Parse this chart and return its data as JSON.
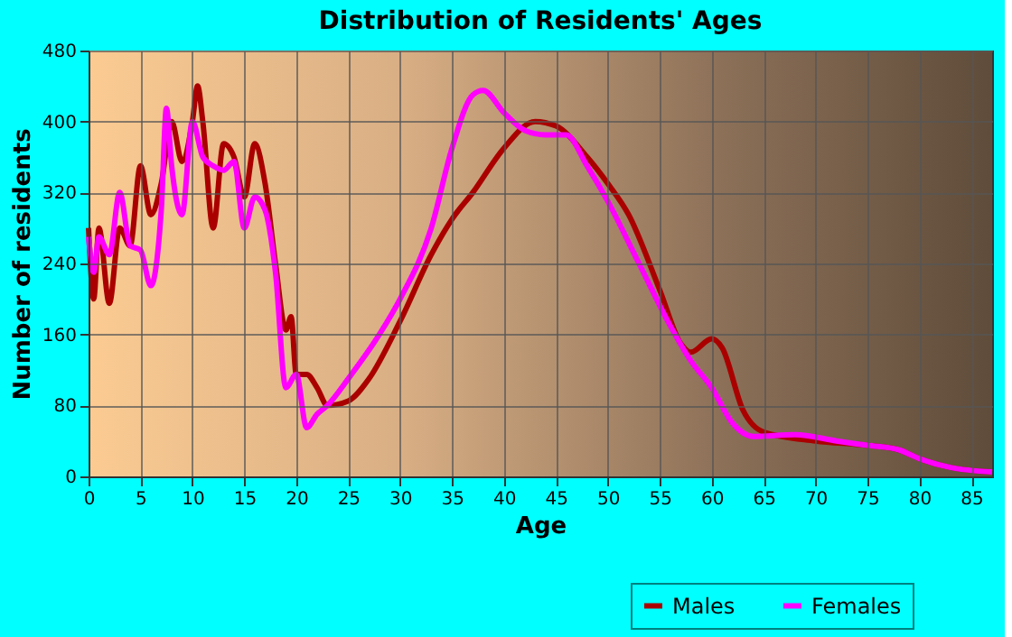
{
  "chart_data": {
    "type": "line",
    "title": "Distribution of Residents' Ages",
    "xlabel": "Age",
    "ylabel": "Number of residents",
    "xlim": [
      0,
      87
    ],
    "xticks": [
      0,
      5,
      10,
      15,
      20,
      25,
      30,
      35,
      40,
      45,
      50,
      55,
      60,
      65,
      70,
      75,
      80,
      85
    ],
    "ylim": [
      0,
      480
    ],
    "yticks": [
      0,
      80,
      160,
      240,
      320,
      400,
      480
    ],
    "grid": true,
    "legend": "bottom right",
    "series": [
      {
        "name": "Males",
        "color": "#aa0000",
        "x": [
          0,
          0.5,
          1,
          2,
          3,
          4,
          5,
          6,
          7,
          8,
          9,
          10,
          10.5,
          11,
          12,
          13,
          14,
          15,
          16,
          17,
          18,
          19,
          19.5,
          20,
          21,
          22,
          23,
          25,
          27,
          30,
          33,
          35,
          37,
          40,
          43,
          45,
          48,
          50,
          52,
          55,
          57,
          58,
          60,
          61,
          63,
          65,
          70,
          75,
          78,
          80,
          83,
          87
        ],
        "values": [
          280,
          200,
          280,
          195,
          280,
          260,
          350,
          295,
          330,
          400,
          355,
          400,
          440,
          400,
          280,
          375,
          360,
          315,
          375,
          330,
          240,
          165,
          180,
          115,
          115,
          100,
          80,
          85,
          110,
          175,
          250,
          290,
          320,
          370,
          400,
          395,
          360,
          330,
          295,
          210,
          150,
          140,
          155,
          145,
          75,
          50,
          40,
          35,
          30,
          20,
          10,
          5
        ]
      },
      {
        "name": "Females",
        "color": "#ff00ff",
        "x": [
          0,
          0.5,
          1,
          2,
          3,
          4,
          5,
          6,
          7,
          7.5,
          8,
          9,
          10,
          11,
          12,
          13,
          14,
          15,
          16,
          17,
          18,
          19,
          20,
          21,
          22,
          23,
          25,
          28,
          30,
          33,
          35,
          37,
          38,
          40,
          42,
          44,
          46,
          48,
          50,
          53,
          56,
          58,
          60,
          62,
          64,
          68,
          72,
          75,
          78,
          80,
          83,
          87
        ],
        "values": [
          270,
          230,
          270,
          250,
          320,
          260,
          255,
          215,
          300,
          415,
          350,
          295,
          400,
          360,
          350,
          345,
          355,
          280,
          315,
          300,
          230,
          100,
          115,
          55,
          70,
          80,
          110,
          160,
          200,
          280,
          370,
          430,
          435,
          410,
          390,
          385,
          385,
          350,
          310,
          240,
          170,
          130,
          100,
          60,
          45,
          47,
          40,
          35,
          30,
          20,
          10,
          5
        ]
      }
    ]
  }
}
